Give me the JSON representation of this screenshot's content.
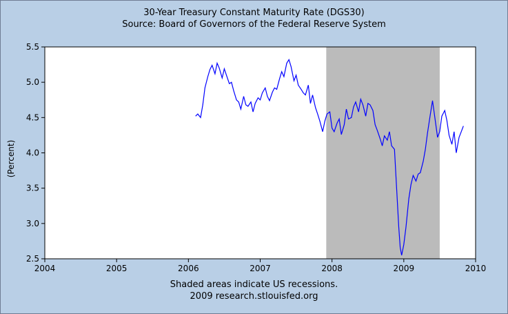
{
  "chart_data": {
    "type": "line",
    "title": "30-Year Treasury Constant Maturity Rate (DGS30)",
    "subtitle": "Source: Board of Governors of the Federal Reserve System",
    "xlabel": "",
    "ylabel": "(Percent)",
    "xlim": [
      2004,
      2010
    ],
    "ylim": [
      2.5,
      5.5
    ],
    "x_ticks": [
      "2004",
      "2005",
      "2006",
      "2007",
      "2008",
      "2009",
      "2010"
    ],
    "y_ticks": [
      "2.5",
      "3.0",
      "3.5",
      "4.0",
      "4.5",
      "5.0",
      "5.5"
    ],
    "grid": false,
    "line_color": "#0000ff",
    "recession_color": "#bbbbbb",
    "recessions": [
      {
        "start": 2007.92,
        "end": 2009.5
      }
    ],
    "series": [
      {
        "x": [
          2006.1,
          2006.13,
          2006.17,
          2006.2,
          2006.23,
          2006.27,
          2006.3,
          2006.33,
          2006.37,
          2006.4,
          2006.43,
          2006.47,
          2006.5,
          2006.53,
          2006.57,
          2006.6,
          2006.63,
          2006.67,
          2006.7,
          2006.73,
          2006.77,
          2006.8,
          2006.83,
          2006.87,
          2006.9,
          2006.93,
          2006.97,
          2007.0,
          2007.03,
          2007.07,
          2007.1,
          2007.13,
          2007.17,
          2007.2,
          2007.23,
          2007.27,
          2007.3,
          2007.33,
          2007.37,
          2007.4,
          2007.43,
          2007.47,
          2007.5,
          2007.53,
          2007.57,
          2007.6,
          2007.63,
          2007.67,
          2007.7,
          2007.73,
          2007.77,
          2007.8,
          2007.83,
          2007.87,
          2007.9,
          2007.93,
          2007.97,
          2008.0,
          2008.03,
          2008.07,
          2008.1,
          2008.13,
          2008.17,
          2008.2,
          2008.23,
          2008.27,
          2008.3,
          2008.33,
          2008.37,
          2008.4,
          2008.43,
          2008.47,
          2008.5,
          2008.53,
          2008.57,
          2008.6,
          2008.63,
          2008.67,
          2008.7,
          2008.73,
          2008.77,
          2008.8,
          2008.83,
          2008.87,
          2008.9,
          2008.93,
          2008.95,
          2008.97,
          2009.0,
          2009.03,
          2009.07,
          2009.1,
          2009.13,
          2009.17,
          2009.2,
          2009.23,
          2009.27,
          2009.3,
          2009.33,
          2009.37,
          2009.4,
          2009.43,
          2009.47,
          2009.5,
          2009.53,
          2009.57,
          2009.6,
          2009.63,
          2009.67,
          2009.7,
          2009.73,
          2009.77,
          2009.8,
          2009.83
        ],
        "values": [
          4.52,
          4.55,
          4.5,
          4.68,
          4.92,
          5.08,
          5.18,
          5.24,
          5.12,
          5.27,
          5.2,
          5.06,
          5.19,
          5.1,
          4.98,
          5.0,
          4.88,
          4.75,
          4.72,
          4.62,
          4.8,
          4.68,
          4.66,
          4.72,
          4.58,
          4.7,
          4.78,
          4.75,
          4.85,
          4.92,
          4.8,
          4.74,
          4.86,
          4.92,
          4.9,
          5.05,
          5.15,
          5.08,
          5.27,
          5.32,
          5.22,
          5.02,
          5.1,
          4.96,
          4.9,
          4.85,
          4.82,
          4.96,
          4.7,
          4.82,
          4.64,
          4.55,
          4.45,
          4.3,
          4.45,
          4.55,
          4.58,
          4.35,
          4.3,
          4.42,
          4.48,
          4.26,
          4.4,
          4.62,
          4.48,
          4.5,
          4.65,
          4.72,
          4.58,
          4.76,
          4.68,
          4.52,
          4.7,
          4.68,
          4.6,
          4.4,
          4.32,
          4.2,
          4.1,
          4.24,
          4.18,
          4.3,
          4.1,
          4.05,
          3.5,
          2.95,
          2.66,
          2.55,
          2.7,
          2.95,
          3.35,
          3.55,
          3.68,
          3.6,
          3.7,
          3.72,
          3.88,
          4.05,
          4.28,
          4.55,
          4.74,
          4.52,
          4.22,
          4.3,
          4.52,
          4.6,
          4.46,
          4.25,
          4.12,
          4.3,
          4.0,
          4.22,
          4.3,
          4.38
        ]
      }
    ],
    "notes": [
      "Shaded areas indicate US recessions.",
      "2009 research.stlouisfed.org"
    ]
  }
}
